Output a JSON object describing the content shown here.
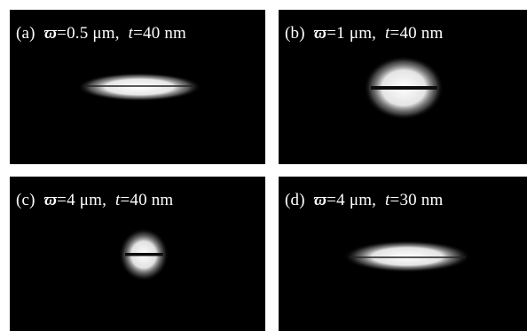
{
  "panels": [
    {
      "id": "a",
      "label": "(a)",
      "symbol": "ϖ",
      "eq_width": "=0.5 μm,",
      "t_symbol": "t",
      "eq_thickness": "=40 nm"
    },
    {
      "id": "b",
      "label": "(b)",
      "symbol": "ϖ",
      "eq_width": "=1 μm,",
      "t_symbol": "t",
      "eq_thickness": "=40 nm"
    },
    {
      "id": "c",
      "label": "(c)",
      "symbol": "ϖ",
      "eq_width": "=4 μm,",
      "t_symbol": "t",
      "eq_thickness": "=40 nm"
    },
    {
      "id": "d",
      "label": "(d)",
      "symbol": "ϖ",
      "eq_width": "=4 μm,",
      "t_symbol": "t",
      "eq_thickness": "=30 nm"
    }
  ],
  "colors": {
    "background": "#000000",
    "glow": "#ffffff",
    "waveguide_line": "#111111",
    "page": "#ffffff"
  }
}
